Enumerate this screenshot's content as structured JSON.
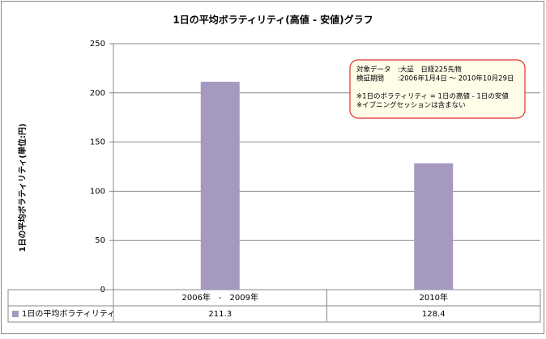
{
  "chart_data": {
    "type": "bar",
    "title": "1日の平均ボラティリティ(高値 - 安値)グラフ",
    "y_label": "1日の平均ボラティリティ(単位:円)",
    "categories": [
      "2006年　-　2009年",
      "2010年"
    ],
    "series": [
      {
        "name": "1日の平均ボラティリティ",
        "color": "#a699c0",
        "values": [
          211.3,
          128.4
        ]
      }
    ],
    "ylim": [
      0,
      250
    ],
    "yticks": [
      0,
      50,
      100,
      150,
      200,
      250
    ],
    "grid": true,
    "annotation": [
      "対象データ　:大証　日経225先物",
      "検証期間　　:2006年1月4日 ～ 2010年10月29日",
      "",
      "※1日のボラティリティ = 1日の高値 - 1日の安値",
      "※イブニングセッションは含まない"
    ]
  }
}
